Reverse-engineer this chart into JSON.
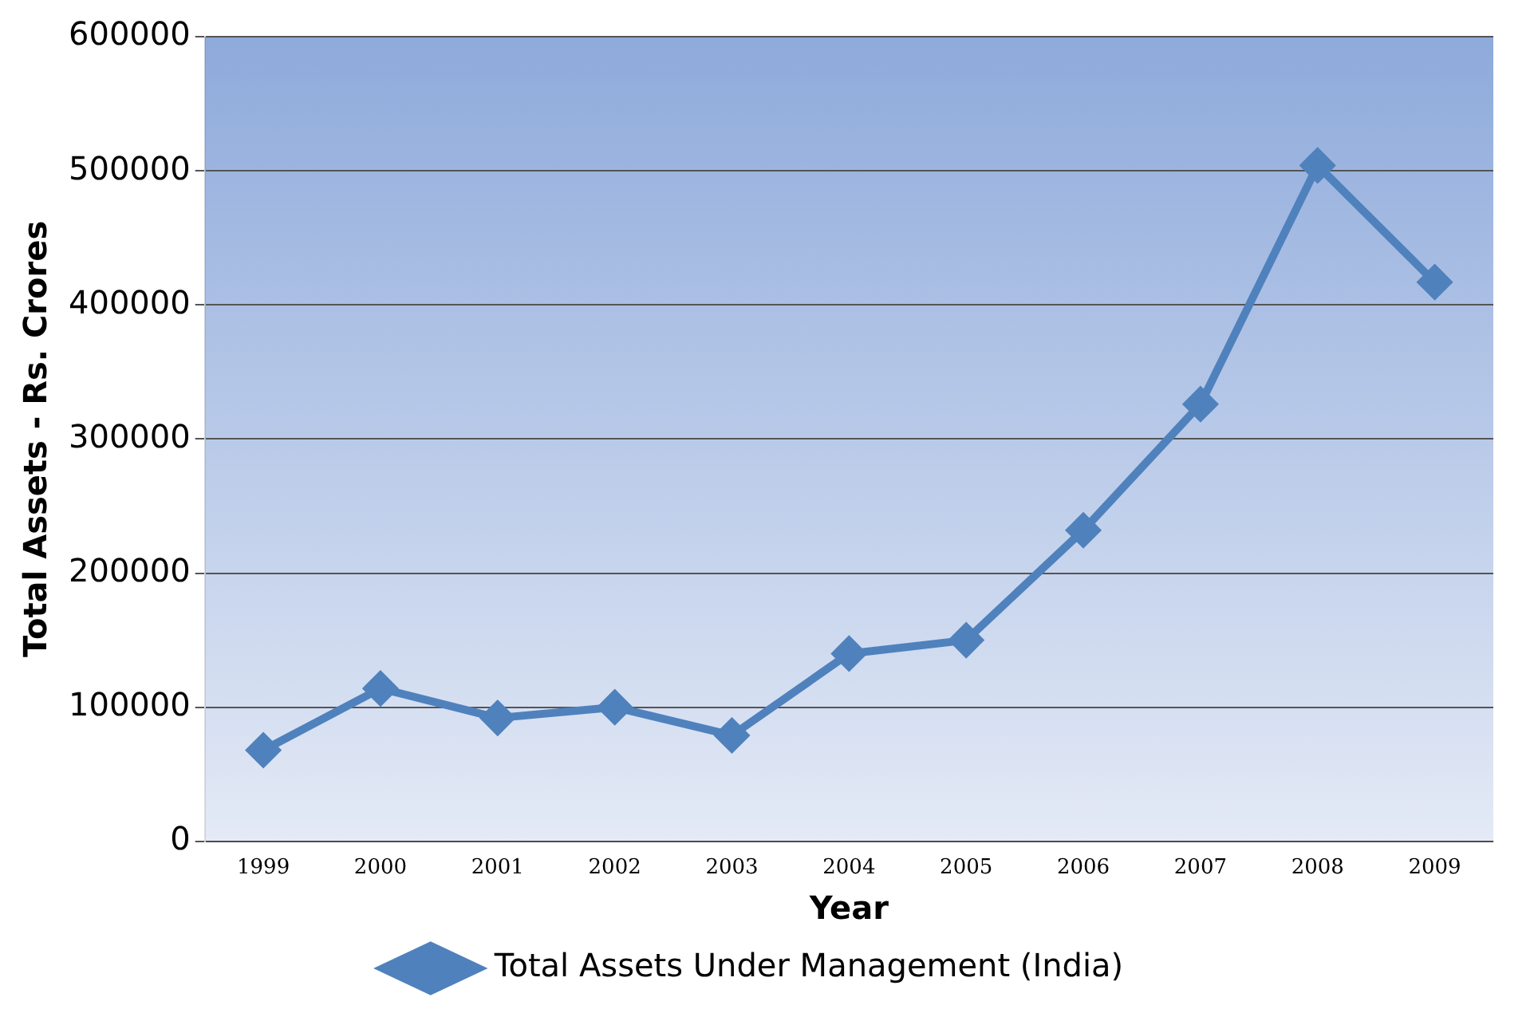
{
  "chart_data": {
    "type": "line",
    "xlabel": "Year",
    "ylabel": "Total Assets - Rs. Crores",
    "categories": [
      "1999",
      "2000",
      "2001",
      "2002",
      "2003",
      "2004",
      "2005",
      "2006",
      "2007",
      "2008",
      "2009"
    ],
    "series": [
      {
        "name": "Total Assets Under Management (India)",
        "color": "#4f81bd",
        "values": [
          68000,
          114000,
          92000,
          100000,
          79000,
          140000,
          150000,
          232000,
          326000,
          504000,
          417000
        ]
      }
    ],
    "ylim": [
      0,
      600000
    ],
    "yticks": [
      0,
      100000,
      200000,
      300000,
      400000,
      500000,
      600000
    ],
    "grid": "y",
    "legend": "bottom",
    "marker": "diamond",
    "line_style": "solid"
  }
}
